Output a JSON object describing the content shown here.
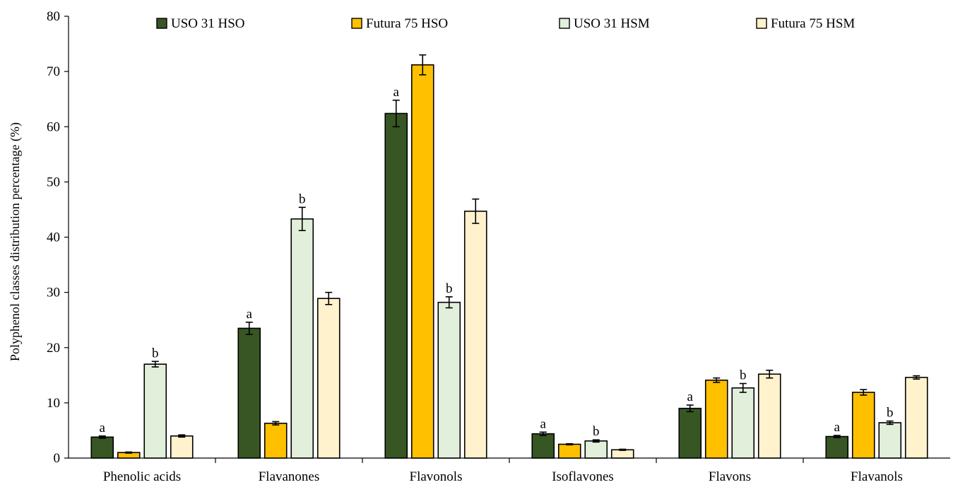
{
  "chart_data": {
    "type": "bar",
    "title": "",
    "xlabel": "",
    "ylabel": "Polyphenol classes distribution percentage (%)",
    "ylim": [
      0,
      80
    ],
    "yticks": [
      0,
      10,
      20,
      30,
      40,
      50,
      60,
      70,
      80
    ],
    "grid": false,
    "legend_position": "top",
    "categories": [
      "Phenolic acids",
      "Flavanones",
      "Flavonols",
      "Isoflavones",
      "Flavons",
      "Flavanols"
    ],
    "series": [
      {
        "name": "USO 31 HSO",
        "color": "#375623",
        "values": [
          3.8,
          23.5,
          62.4,
          4.4,
          9.0,
          3.9
        ],
        "errors": [
          0.2,
          1.1,
          2.4,
          0.3,
          0.6,
          0.2
        ],
        "labels": [
          "a",
          "a",
          "a",
          "a",
          "a",
          "a"
        ]
      },
      {
        "name": "Futura 75 HSO",
        "color": "#FFC000",
        "values": [
          1.0,
          6.3,
          71.2,
          2.5,
          14.1,
          11.9
        ],
        "errors": [
          0.1,
          0.3,
          1.8,
          0.1,
          0.4,
          0.5
        ],
        "labels": [
          "",
          "",
          "",
          "",
          "",
          ""
        ]
      },
      {
        "name": "USO 31 HSM",
        "color": "#E2EFDA",
        "values": [
          17.0,
          43.3,
          28.2,
          3.1,
          12.7,
          6.4
        ],
        "errors": [
          0.5,
          2.1,
          1.0,
          0.2,
          0.8,
          0.3
        ],
        "labels": [
          "b",
          "b",
          "b",
          "b",
          "b",
          "b"
        ]
      },
      {
        "name": "Futura 75 HSM",
        "color": "#FFF2CC",
        "values": [
          4.0,
          28.9,
          44.7,
          1.5,
          15.2,
          14.6
        ],
        "errors": [
          0.2,
          1.1,
          2.2,
          0.1,
          0.7,
          0.3
        ],
        "labels": [
          "",
          "",
          "",
          "",
          "",
          ""
        ]
      }
    ]
  }
}
